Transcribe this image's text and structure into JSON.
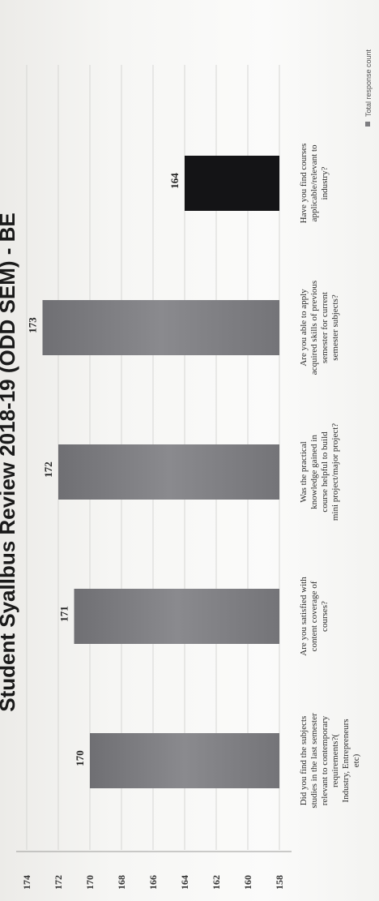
{
  "chart_data": {
    "type": "bar",
    "title": "Student Syallbus Review 2018-19 (ODD SEM) - BE",
    "categories": [
      "Did you find the subjects studies in the last semester relevant to contemporary requirements? (Industry, Entrepreneurs etc)",
      "Are you satisfied with content coverage of courses?",
      "Was the practical knowledge gained in course helpful to build mini project/major project?",
      "Are you able to apply acquired skills of previous semester for current semester subjects?",
      "Have you find courses applicable/relevant to industry?"
    ],
    "category_lines": [
      [
        "Did you find the subjects",
        "studies in the last semester",
        "relevant to contemporary",
        "requirements?(",
        "Industry, Entrepreneurs",
        "etc)"
      ],
      [
        "Are you satisfied with",
        "content coverage of",
        "courses?"
      ],
      [
        "Was the practical",
        "knowledge gained in",
        "course helpful to build",
        "mini project/major project?"
      ],
      [
        "Are you able to apply",
        "acquired skills of previous",
        "semester for current",
        "semester subjects?"
      ],
      [
        "Have you find courses",
        "applicable/relevant to",
        "industry?"
      ]
    ],
    "series": [
      {
        "name": "Total response count",
        "values": [
          170,
          171,
          172,
          173,
          164
        ]
      }
    ],
    "data_labels": [
      "170",
      "171",
      "172",
      "173",
      "164"
    ],
    "highlight": [
      false,
      false,
      false,
      false,
      true
    ],
    "ylim": [
      158,
      174
    ],
    "yticks": [
      158,
      160,
      162,
      164,
      166,
      168,
      170,
      172,
      174
    ],
    "ytick_labels": [
      "158",
      "160",
      "162",
      "164",
      "166",
      "168",
      "170",
      "172",
      "174"
    ],
    "grid": true,
    "legend_position": "right",
    "orientation": "rotated",
    "colors": {
      "bar": "#7d7d80",
      "bar_highlight": "#141416",
      "grid": "#d6d6d4",
      "axis": "#9a9a98"
    }
  }
}
